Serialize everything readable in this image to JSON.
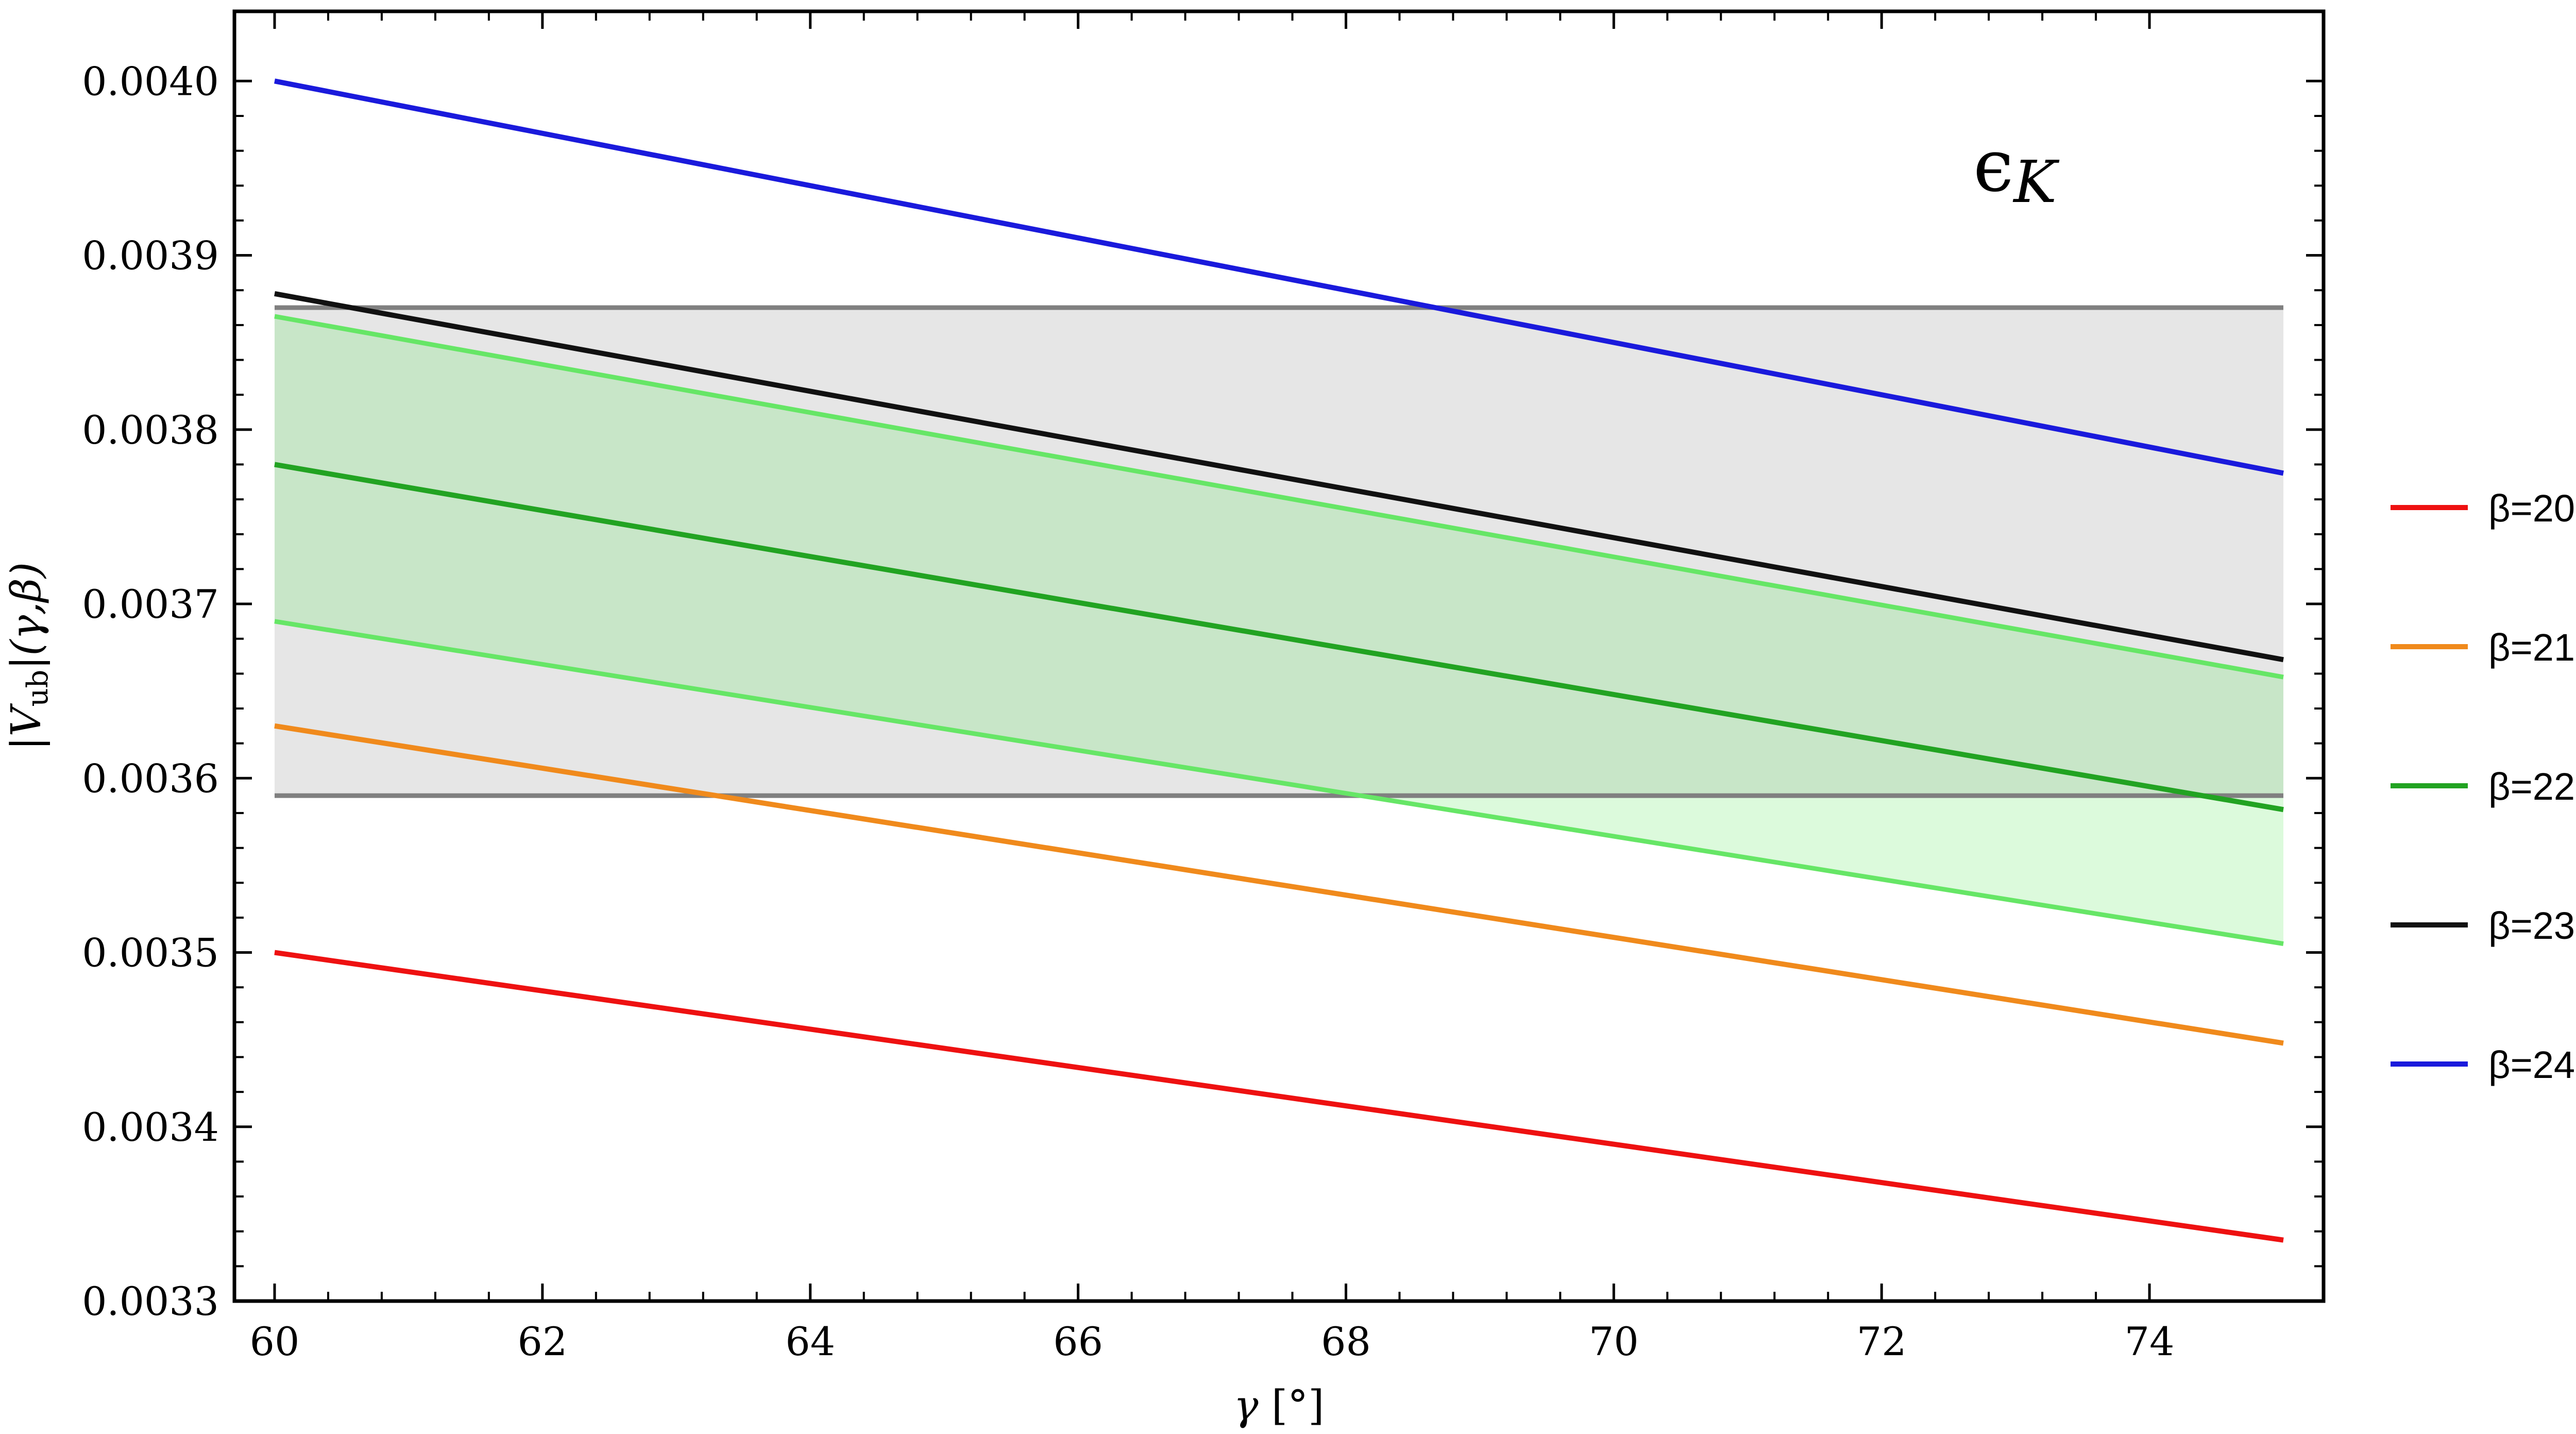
{
  "chart_data": {
    "type": "line",
    "xlabel": "γ [°]",
    "ylabel": "|V_ub|(γ,β)",
    "ylabel_parts": {
      "bar_open": "|",
      "V": "V",
      "sub": "ub",
      "bar_close": "|",
      "args": "(γ,β)"
    },
    "xlabel_parts": {
      "gamma": "γ",
      "unit": " [°]"
    },
    "annotation": {
      "main": "ϵ",
      "sub": "K",
      "text": "ϵK"
    },
    "xlim": [
      59.7,
      75.3
    ],
    "ylim": [
      0.0033,
      0.00404
    ],
    "x_ticks": [
      60,
      62,
      64,
      66,
      68,
      70,
      72,
      74
    ],
    "x_tick_labels": [
      "60",
      "62",
      "64",
      "66",
      "68",
      "70",
      "72",
      "74"
    ],
    "y_ticks": [
      0.0033,
      0.0034,
      0.0035,
      0.0036,
      0.0037,
      0.0038,
      0.0039,
      0.004
    ],
    "y_tick_labels": [
      "0.0033",
      "0.0034",
      "0.0035",
      "0.0036",
      "0.0037",
      "0.0038",
      "0.0039",
      "0.0040"
    ],
    "grey_band": {
      "y_low": 0.00359,
      "y_high": 0.00387,
      "x_range": [
        60,
        75
      ],
      "fill": "#e6e6e6",
      "edge": "#808080"
    },
    "green_band": {
      "x": [
        60,
        75
      ],
      "lower": [
        0.00369,
        0.003505
      ],
      "upper": [
        0.003865,
        0.003658
      ],
      "fill": "#dcfadc",
      "edge": "#66e666",
      "overlap_fill": "#c8e6c8"
    },
    "series": [
      {
        "name": "β=20°",
        "x": [
          60,
          75
        ],
        "values": [
          0.0035,
          0.003335
        ],
        "color": "#ee1111"
      },
      {
        "name": "β=21°",
        "x": [
          60,
          75
        ],
        "values": [
          0.00363,
          0.003448
        ],
        "color": "#f08a1c"
      },
      {
        "name": "β=22.2°",
        "x": [
          60,
          75
        ],
        "values": [
          0.00378,
          0.003582
        ],
        "color": "#22a322"
      },
      {
        "name": "β=23°",
        "x": [
          60,
          75
        ],
        "values": [
          0.003878,
          0.003668
        ],
        "color": "#111111"
      },
      {
        "name": "β=24°",
        "x": [
          60,
          75
        ],
        "values": [
          0.004,
          0.003775
        ],
        "color": "#1a1adc"
      }
    ],
    "legend": [
      {
        "label": "β=20°",
        "color": "#ee1111"
      },
      {
        "label": "β=21°",
        "color": "#f08a1c"
      },
      {
        "label": "β=22.2°",
        "color": "#22a322"
      },
      {
        "label": "β=23°",
        "color": "#111111"
      },
      {
        "label": "β=24°",
        "color": "#1a1adc"
      }
    ],
    "legend_position": "right"
  }
}
